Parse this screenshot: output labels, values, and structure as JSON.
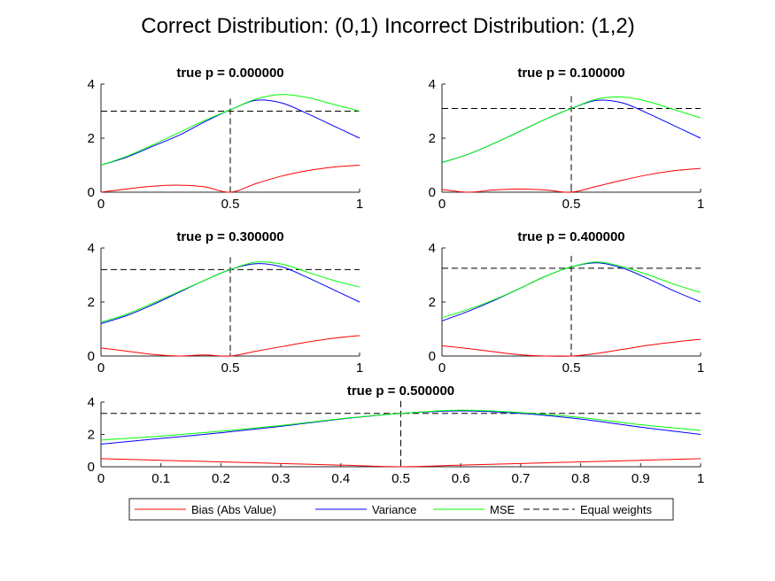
{
  "figure": {
    "title": "Correct Distribution: (0,1)  Incorrect Distribution: (1,2)"
  },
  "colors": {
    "bias": "#ff0000",
    "variance": "#0000ff",
    "mse": "#00ff00",
    "equal": "#000000"
  },
  "legend": {
    "placement": "bottom",
    "items": [
      {
        "label": "Bias (Abs Value)",
        "key": "bias"
      },
      {
        "label": "Variance",
        "key": "variance"
      },
      {
        "label": "MSE",
        "key": "mse"
      },
      {
        "label": "Equal weights",
        "key": "equal"
      }
    ]
  },
  "chart_data": [
    {
      "type": "line",
      "title": "true p = 0.000000",
      "xlim": [
        0,
        1
      ],
      "ylim": [
        0,
        4
      ],
      "xticks": [
        0,
        0.5,
        1
      ],
      "xtick_labels": [
        "0",
        "0.5",
        "1"
      ],
      "yticks": [
        0,
        2,
        4
      ],
      "ytick_labels": [
        "0",
        "2",
        "4"
      ],
      "equal_weights": {
        "x": 0.5,
        "y": 3.0
      },
      "x": [
        0,
        0.1,
        0.2,
        0.3,
        0.4,
        0.5,
        0.6,
        0.7,
        0.8,
        0.9,
        1.0
      ],
      "series": [
        {
          "key": "bias",
          "values": [
            0.0,
            0.12,
            0.22,
            0.26,
            0.2,
            0.0,
            0.32,
            0.6,
            0.8,
            0.93,
            1.0
          ]
        },
        {
          "key": "variance",
          "values": [
            1.0,
            1.3,
            1.7,
            2.1,
            2.6,
            3.05,
            3.4,
            3.3,
            2.9,
            2.45,
            2.0
          ]
        },
        {
          "key": "mse",
          "values": [
            1.0,
            1.33,
            1.75,
            2.2,
            2.65,
            3.05,
            3.45,
            3.62,
            3.5,
            3.25,
            3.0
          ]
        }
      ]
    },
    {
      "type": "line",
      "title": "true p = 0.100000",
      "xlim": [
        0,
        1
      ],
      "ylim": [
        0,
        4
      ],
      "xticks": [
        0,
        0.5,
        1
      ],
      "xtick_labels": [
        "0",
        "0.5",
        "1"
      ],
      "yticks": [
        0,
        2,
        4
      ],
      "ytick_labels": [
        "0",
        "2",
        "4"
      ],
      "equal_weights": {
        "x": 0.5,
        "y": 3.1
      },
      "x": [
        0,
        0.1,
        0.2,
        0.3,
        0.4,
        0.5,
        0.6,
        0.7,
        0.8,
        0.9,
        1.0
      ],
      "series": [
        {
          "key": "bias",
          "values": [
            0.1,
            0.0,
            0.08,
            0.12,
            0.08,
            0.0,
            0.22,
            0.45,
            0.65,
            0.8,
            0.88
          ]
        },
        {
          "key": "variance",
          "values": [
            1.1,
            1.4,
            1.8,
            2.25,
            2.7,
            3.1,
            3.4,
            3.3,
            2.9,
            2.45,
            2.0
          ]
        },
        {
          "key": "mse",
          "values": [
            1.1,
            1.4,
            1.8,
            2.25,
            2.7,
            3.1,
            3.45,
            3.52,
            3.35,
            3.05,
            2.75
          ]
        }
      ]
    },
    {
      "type": "line",
      "title": "true p = 0.300000",
      "xlim": [
        0,
        1
      ],
      "ylim": [
        0,
        4
      ],
      "xticks": [
        0,
        0.5,
        1
      ],
      "xtick_labels": [
        "0",
        "0.5",
        "1"
      ],
      "yticks": [
        0,
        2,
        4
      ],
      "ytick_labels": [
        "0",
        "2",
        "4"
      ],
      "equal_weights": {
        "x": 0.5,
        "y": 3.2
      },
      "x": [
        0,
        0.1,
        0.2,
        0.3,
        0.4,
        0.5,
        0.6,
        0.7,
        0.8,
        0.9,
        1.0
      ],
      "series": [
        {
          "key": "bias",
          "values": [
            0.3,
            0.18,
            0.06,
            0.0,
            0.04,
            0.0,
            0.18,
            0.35,
            0.52,
            0.66,
            0.76
          ]
        },
        {
          "key": "variance",
          "values": [
            1.2,
            1.5,
            1.9,
            2.35,
            2.8,
            3.2,
            3.42,
            3.3,
            2.9,
            2.45,
            2.0
          ]
        },
        {
          "key": "mse",
          "values": [
            1.25,
            1.55,
            1.95,
            2.38,
            2.8,
            3.2,
            3.48,
            3.4,
            3.1,
            2.8,
            2.55
          ]
        }
      ]
    },
    {
      "type": "line",
      "title": "true p = 0.400000",
      "xlim": [
        0,
        1
      ],
      "ylim": [
        0,
        4
      ],
      "xticks": [
        0,
        0.5,
        1
      ],
      "xtick_labels": [
        "0",
        "0.5",
        "1"
      ],
      "yticks": [
        0,
        2,
        4
      ],
      "ytick_labels": [
        "0",
        "2",
        "4"
      ],
      "equal_weights": {
        "x": 0.5,
        "y": 3.25
      },
      "x": [
        0,
        0.1,
        0.2,
        0.3,
        0.4,
        0.5,
        0.6,
        0.7,
        0.8,
        0.9,
        1.0
      ],
      "series": [
        {
          "key": "bias",
          "values": [
            0.38,
            0.28,
            0.16,
            0.05,
            0.0,
            0.0,
            0.1,
            0.25,
            0.4,
            0.52,
            0.62
          ]
        },
        {
          "key": "variance",
          "values": [
            1.3,
            1.65,
            2.05,
            2.5,
            2.95,
            3.3,
            3.45,
            3.25,
            2.85,
            2.4,
            2.0
          ]
        },
        {
          "key": "mse",
          "values": [
            1.42,
            1.72,
            2.08,
            2.5,
            2.95,
            3.3,
            3.48,
            3.3,
            3.0,
            2.65,
            2.35
          ]
        }
      ]
    },
    {
      "type": "line",
      "title": "true p = 0.500000",
      "xlim": [
        0,
        1
      ],
      "ylim": [
        0,
        4
      ],
      "xticks": [
        0,
        0.1,
        0.2,
        0.3,
        0.4,
        0.5,
        0.6,
        0.7,
        0.8,
        0.9,
        1
      ],
      "xtick_labels": [
        "0",
        "0.1",
        "0.2",
        "0.3",
        "0.4",
        "0.5",
        "0.6",
        "0.7",
        "0.8",
        "0.9",
        "1"
      ],
      "yticks": [
        0,
        2,
        4
      ],
      "ytick_labels": [
        "0",
        "2",
        "4"
      ],
      "equal_weights": {
        "x": 0.5,
        "y": 3.3
      },
      "x": [
        0,
        0.1,
        0.2,
        0.3,
        0.4,
        0.5,
        0.6,
        0.7,
        0.8,
        0.9,
        1.0
      ],
      "series": [
        {
          "key": "bias",
          "values": [
            0.5,
            0.4,
            0.3,
            0.2,
            0.1,
            0.0,
            0.1,
            0.2,
            0.3,
            0.4,
            0.5
          ]
        },
        {
          "key": "variance",
          "values": [
            1.4,
            1.75,
            2.1,
            2.5,
            2.95,
            3.3,
            3.45,
            3.3,
            2.95,
            2.45,
            2.0
          ]
        },
        {
          "key": "mse",
          "values": [
            1.65,
            1.9,
            2.2,
            2.55,
            2.97,
            3.3,
            3.5,
            3.35,
            3.05,
            2.6,
            2.25
          ]
        }
      ]
    }
  ]
}
